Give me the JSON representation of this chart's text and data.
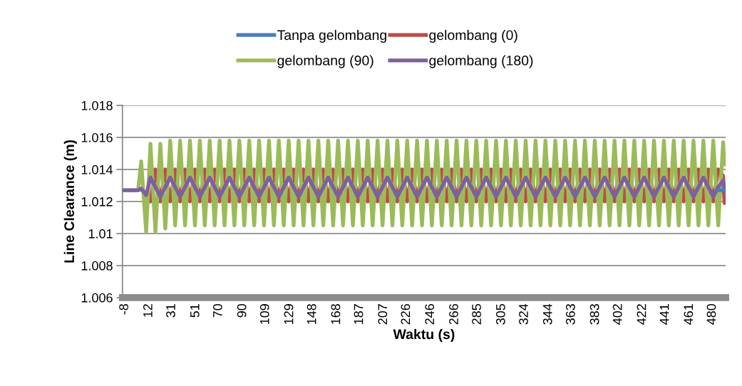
{
  "chart_data": {
    "type": "line",
    "xlabel": "Waktu (s)",
    "ylabel": "Line Clearance (m)",
    "x": [
      -10,
      3,
      5.6,
      9.7,
      13.3,
      17.4,
      21.5,
      25.6,
      29.7,
      33.8,
      37.9,
      42.0,
      46.1,
      50.2,
      54.3,
      58.4,
      62.5,
      66.6,
      70.7,
      74.8,
      78.9,
      83.0,
      87.1,
      91.2,
      95.3,
      99.4,
      103.5,
      107.6,
      111.7,
      115.8,
      119.9,
      124.0,
      128.1,
      132.2,
      136.3,
      140.4,
      144.5,
      148.6,
      152.7,
      156.8,
      160.9,
      165.0,
      169.1,
      173.2,
      177.3,
      181.4,
      185.5,
      189.6,
      193.7,
      197.8,
      201.9,
      206.0,
      210.1,
      214.2,
      218.3,
      222.4,
      226.5,
      230.6,
      234.7,
      238.8,
      242.9,
      247.0,
      251.1,
      255.2,
      259.3,
      263.4,
      267.5,
      271.6,
      275.7,
      279.8,
      283.9,
      288.0,
      292.1,
      296.2,
      300.3,
      304.4,
      308.5,
      312.6,
      316.7,
      320.8,
      324.9,
      329.0,
      333.1,
      337.2,
      341.3,
      345.4,
      349.5,
      353.6,
      357.7,
      361.8,
      365.9,
      370.0,
      374.1,
      378.2,
      382.3,
      386.4,
      390.5,
      394.6,
      398.7,
      402.8,
      406.9,
      411.0,
      415.1,
      419.2,
      423.3,
      427.4,
      431.5,
      435.6,
      439.7,
      443.8,
      447.9,
      452.0,
      456.1,
      460.2,
      464.3,
      468.4,
      472.5,
      476.6,
      480.7,
      484.8,
      488.9,
      490
    ],
    "series": [
      {
        "name": "Tanpa gelombang",
        "color": "#4a7ebb",
        "values": [
          null,
          null,
          null,
          null,
          null,
          null,
          null,
          null,
          null,
          null,
          null,
          null,
          null,
          null,
          null,
          null,
          null,
          null,
          null,
          null,
          null,
          null,
          null,
          null,
          null,
          null,
          null,
          null,
          null,
          null,
          null,
          null,
          null,
          null,
          null,
          null,
          null,
          null,
          null,
          null,
          null,
          null,
          null,
          null,
          null,
          null,
          null,
          null,
          null,
          null,
          null,
          null,
          null,
          null,
          null,
          null,
          null,
          null,
          null,
          null,
          null,
          null,
          null,
          null,
          null,
          null,
          null,
          null,
          null,
          null,
          null,
          null,
          null,
          null,
          null,
          null,
          null,
          null,
          null,
          null,
          null,
          null,
          null,
          null,
          null,
          null,
          null,
          null,
          null,
          null,
          null,
          null,
          null,
          null,
          null,
          null,
          null,
          null,
          null,
          null,
          null,
          null,
          null,
          null,
          null,
          null,
          null,
          null,
          null,
          null,
          null,
          null,
          null,
          null,
          null,
          null,
          null,
          null,
          null,
          1.0127,
          1.0127,
          1.0127
        ]
      },
      {
        "name": "gelombang (0)",
        "color": "#be4b48",
        "values": [
          null,
          null,
          1.0128,
          1.0124,
          1.012,
          1.014,
          1.012,
          1.014,
          1.012,
          1.014,
          1.012,
          1.014,
          1.012,
          1.014,
          1.012,
          1.014,
          1.012,
          1.014,
          1.012,
          1.014,
          1.012,
          1.014,
          1.012,
          1.014,
          1.012,
          1.014,
          1.012,
          1.014,
          1.012,
          1.014,
          1.012,
          1.014,
          1.012,
          1.014,
          1.012,
          1.014,
          1.012,
          1.014,
          1.012,
          1.014,
          1.012,
          1.014,
          1.012,
          1.014,
          1.012,
          1.014,
          1.012,
          1.014,
          1.012,
          1.014,
          1.012,
          1.014,
          1.012,
          1.014,
          1.012,
          1.014,
          1.012,
          1.014,
          1.012,
          1.014,
          1.012,
          1.014,
          1.012,
          1.014,
          1.012,
          1.014,
          1.012,
          1.014,
          1.012,
          1.014,
          1.012,
          1.014,
          1.012,
          1.014,
          1.012,
          1.014,
          1.012,
          1.014,
          1.012,
          1.014,
          1.012,
          1.014,
          1.012,
          1.014,
          1.012,
          1.014,
          1.012,
          1.014,
          1.012,
          1.014,
          1.012,
          1.014,
          1.012,
          1.014,
          1.012,
          1.014,
          1.012,
          1.014,
          1.012,
          1.014,
          1.012,
          1.014,
          1.012,
          1.014,
          1.012,
          1.014,
          1.012,
          1.014,
          1.012,
          1.014,
          1.012,
          1.014,
          1.012,
          1.014,
          1.012,
          1.014,
          1.012,
          1.014,
          1.012,
          1.014,
          1.0136,
          1.0119
        ]
      },
      {
        "name": "gelombang (90)",
        "color": "#9bbb59",
        "values": [
          1.0127,
          1.0127,
          1.0145,
          1.0101,
          1.0156,
          1.0101,
          1.0156,
          1.0103,
          1.0158,
          1.0105,
          1.0158,
          1.0105,
          1.0158,
          1.0105,
          1.0158,
          1.0105,
          1.0158,
          1.0105,
          1.0158,
          1.0105,
          1.0158,
          1.0105,
          1.0158,
          1.0105,
          1.0158,
          1.0105,
          1.0158,
          1.0105,
          1.0158,
          1.0105,
          1.0158,
          1.0105,
          1.0158,
          1.0105,
          1.0158,
          1.0105,
          1.0158,
          1.0105,
          1.0158,
          1.0105,
          1.0158,
          1.0105,
          1.0158,
          1.0105,
          1.0158,
          1.0105,
          1.0158,
          1.0105,
          1.0158,
          1.0105,
          1.0158,
          1.0105,
          1.0158,
          1.0105,
          1.0158,
          1.0105,
          1.0158,
          1.0105,
          1.0158,
          1.0105,
          1.0158,
          1.0105,
          1.0158,
          1.0105,
          1.0158,
          1.0105,
          1.0158,
          1.0105,
          1.0158,
          1.0105,
          1.0158,
          1.0105,
          1.0158,
          1.0105,
          1.0158,
          1.0105,
          1.0158,
          1.0105,
          1.0158,
          1.0105,
          1.0158,
          1.0105,
          1.0158,
          1.0105,
          1.0158,
          1.0105,
          1.0158,
          1.0105,
          1.0158,
          1.0105,
          1.0158,
          1.0105,
          1.0158,
          1.0105,
          1.0158,
          1.0105,
          1.0158,
          1.0105,
          1.0158,
          1.0105,
          1.0158,
          1.0105,
          1.0158,
          1.0105,
          1.0158,
          1.0105,
          1.0158,
          1.0105,
          1.0158,
          1.0105,
          1.0158,
          1.0105,
          1.0158,
          1.0105,
          1.0158,
          1.0105,
          1.0158,
          1.0105,
          1.0158,
          1.0105,
          1.0157,
          1.0143
        ]
      },
      {
        "name": "gelombang (180)",
        "color": "#7d60a0",
        "values": [
          1.0127,
          1.0127,
          1.0128,
          1.0124,
          1.0135,
          1.0129,
          1.0123,
          1.0129,
          1.0135,
          1.0129,
          1.0123,
          1.0129,
          1.0135,
          1.0129,
          1.0123,
          1.0129,
          1.0135,
          1.0129,
          1.0123,
          1.0129,
          1.0135,
          1.0129,
          1.0123,
          1.0129,
          1.0135,
          1.0129,
          1.0123,
          1.0129,
          1.0135,
          1.0129,
          1.0123,
          1.0129,
          1.0135,
          1.0129,
          1.0123,
          1.0129,
          1.0135,
          1.0129,
          1.0123,
          1.0129,
          1.0135,
          1.0129,
          1.0123,
          1.0129,
          1.0135,
          1.0129,
          1.0123,
          1.0129,
          1.0135,
          1.0129,
          1.0123,
          1.0129,
          1.0135,
          1.0129,
          1.0123,
          1.0129,
          1.0135,
          1.0129,
          1.0123,
          1.0129,
          1.0135,
          1.0129,
          1.0123,
          1.0129,
          1.0135,
          1.0129,
          1.0123,
          1.0129,
          1.0135,
          1.0129,
          1.0123,
          1.0129,
          1.0135,
          1.0129,
          1.0123,
          1.0129,
          1.0135,
          1.0129,
          1.0123,
          1.0129,
          1.0135,
          1.0129,
          1.0123,
          1.0129,
          1.0135,
          1.0129,
          1.0123,
          1.0129,
          1.0135,
          1.0129,
          1.0123,
          1.0129,
          1.0135,
          1.0129,
          1.0123,
          1.0129,
          1.0135,
          1.0129,
          1.0123,
          1.0129,
          1.0135,
          1.0129,
          1.0123,
          1.0129,
          1.0135,
          1.0129,
          1.0123,
          1.0129,
          1.0135,
          1.0129,
          1.0123,
          1.0129,
          1.0135,
          1.0129,
          1.0123,
          1.0129,
          1.0135,
          1.0129,
          1.0123,
          1.0129,
          1.0133,
          1.0126
        ]
      }
    ],
    "xlim": [
      -10,
      491
    ],
    "xticks": [
      -8,
      12,
      31,
      51,
      70,
      90,
      109,
      129,
      148,
      168,
      187,
      207,
      226,
      246,
      266,
      285,
      305,
      324,
      344,
      363,
      383,
      402,
      422,
      441,
      461,
      480
    ],
    "ylim": [
      1.006,
      1.018
    ],
    "yticks": [
      1.006,
      1.008,
      1.01,
      1.012,
      1.014,
      1.016,
      1.018
    ],
    "grid": "y",
    "legend": "top"
  }
}
